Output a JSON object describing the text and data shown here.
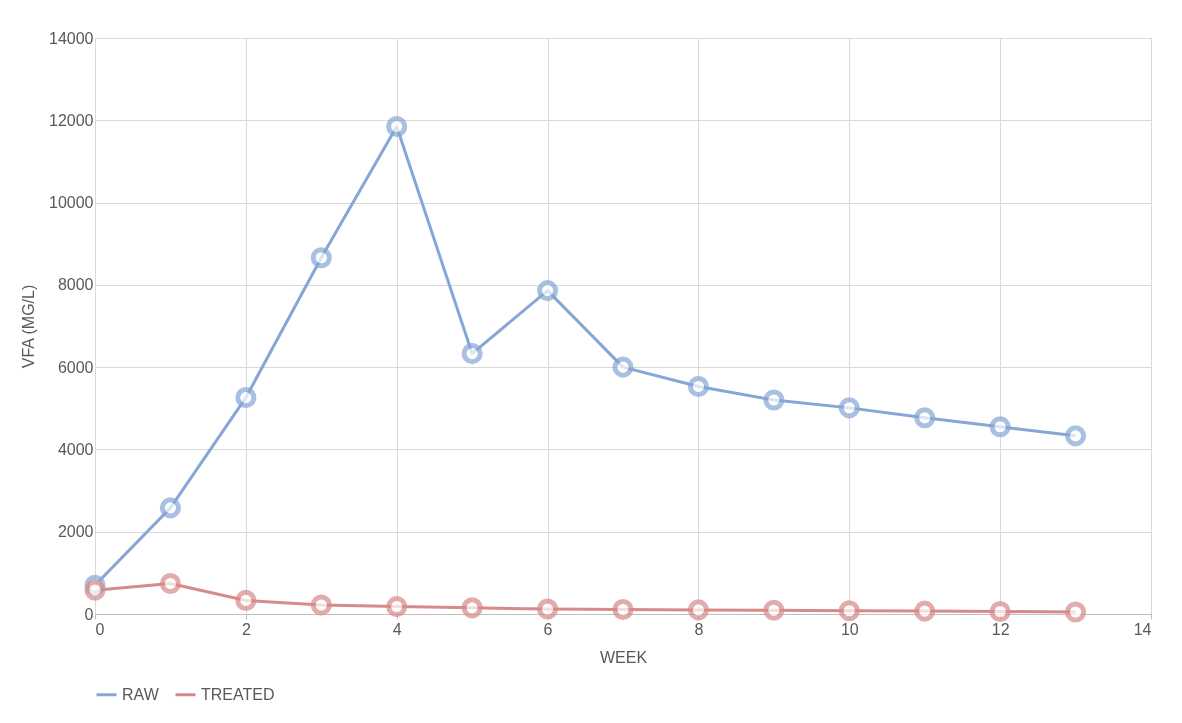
{
  "chart_data": {
    "type": "line",
    "xlabel": "WEEK",
    "ylabel": "VFA (MG/L)",
    "x": [
      0,
      1,
      2,
      3,
      4,
      5,
      6,
      7,
      8,
      9,
      10,
      11,
      12,
      13
    ],
    "series": [
      {
        "name": "RAW",
        "color": "#86a6d6",
        "values": [
          700,
          2580,
          5260,
          8660,
          11850,
          6330,
          7860,
          6000,
          5530,
          5200,
          5010,
          4770,
          4550,
          4330
        ]
      },
      {
        "name": "TREATED",
        "color": "#d88a8a",
        "values": [
          580,
          740,
          330,
          220,
          180,
          150,
          120,
          110,
          100,
          90,
          80,
          70,
          60,
          50
        ]
      }
    ],
    "xlim": [
      0,
      14
    ],
    "xticks": [
      0,
      2,
      4,
      6,
      8,
      10,
      12,
      14
    ],
    "ylim": [
      0,
      14000
    ],
    "yticks": [
      0,
      2000,
      4000,
      6000,
      8000,
      10000,
      12000,
      14000
    ],
    "grid": true,
    "legend": "bottom",
    "marker": "circle",
    "line_style": "solid"
  }
}
